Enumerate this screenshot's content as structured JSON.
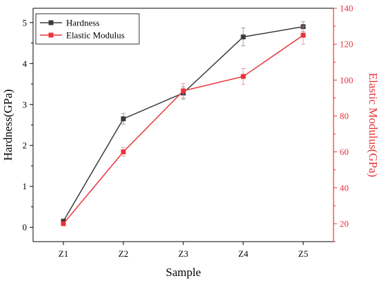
{
  "chart_data": {
    "type": "line",
    "categories": [
      "Z1",
      "Z2",
      "Z3",
      "Z4",
      "Z5"
    ],
    "xlabel": "Sample",
    "ylabel_left": "Hardness(GPa)",
    "ylabel_right": "Elastic Modulus(GPa)",
    "left_axis": {
      "ylim": [
        -0.35,
        5.35
      ],
      "ticks": [
        0,
        1,
        2,
        3,
        4,
        5
      ]
    },
    "right_axis": {
      "ylim": [
        10,
        140
      ],
      "ticks": [
        20,
        40,
        60,
        80,
        100,
        120,
        140
      ]
    },
    "series": [
      {
        "name": "Hardness",
        "axis": "left",
        "color": "#3a3a3a",
        "values": [
          0.15,
          2.65,
          3.28,
          4.65,
          4.9
        ],
        "errors": [
          0.03,
          0.13,
          0.15,
          0.22,
          0.12
        ]
      },
      {
        "name": "Elastic Modulus",
        "axis": "right",
        "color": "#e8333a",
        "values": [
          20,
          60,
          94,
          102,
          125
        ],
        "errors": [
          1.0,
          2.5,
          4.0,
          4.5,
          5.0
        ]
      }
    ],
    "legend_position": "top-left",
    "grid": false
  }
}
